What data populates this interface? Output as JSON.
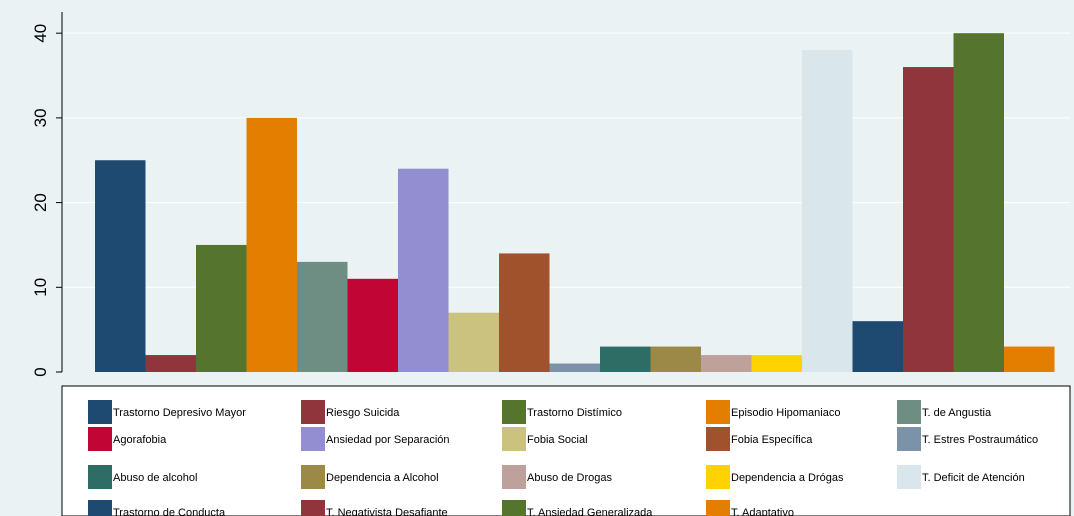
{
  "chart_data": {
    "type": "bar",
    "title": "",
    "xlabel": "",
    "ylabel": "",
    "ylim": [
      0,
      42.5
    ],
    "yticks": [
      0,
      10,
      20,
      30,
      40
    ],
    "ytick_labels": [
      "0",
      "10",
      "20",
      "30",
      "40"
    ],
    "grid": "horizontal",
    "legend_position": "bottom",
    "series": [
      {
        "name": "Trastorno Depresivo Mayor",
        "value": 25,
        "color": "#1e4a72"
      },
      {
        "name": "Riesgo Suicida",
        "value": 2,
        "color": "#90353b"
      },
      {
        "name": "Trastorno Distímico",
        "value": 15,
        "color": "#55752f"
      },
      {
        "name": "Episodio Hipomaniaco",
        "value": 30,
        "color": "#e37e00"
      },
      {
        "name": "T. de Angustia",
        "value": 13,
        "color": "#6e8e84"
      },
      {
        "name": "Agorafobia",
        "value": 11,
        "color": "#c10534"
      },
      {
        "name": "Ansiedad por Separación",
        "value": 24,
        "color": "#938dd2"
      },
      {
        "name": "Fobia Social",
        "value": 7,
        "color": "#cac27e"
      },
      {
        "name": "Fobia Específica",
        "value": 14,
        "color": "#a0522d"
      },
      {
        "name": "T. Estres Postraumático",
        "value": 1,
        "color": "#7b92a8"
      },
      {
        "name": "Abuso de alcohol",
        "value": 3,
        "color": "#2d6d66"
      },
      {
        "name": "Dependencia a Alcohol",
        "value": 3,
        "color": "#9c8847"
      },
      {
        "name": "Abuso de Drogas",
        "value": 2,
        "color": "#bfa19c"
      },
      {
        "name": "Dependencia a Drógas",
        "value": 2,
        "color": "#ffd200"
      },
      {
        "name": "T. Deficit de Atención",
        "value": 38,
        "color": "#d9e6eb"
      },
      {
        "name": "Trastorno de Conducta",
        "value": 6,
        "color": "#1e4a72"
      },
      {
        "name": "T. Negativista Desafiante",
        "value": 36,
        "color": "#90353b"
      },
      {
        "name": "T. Ansiedad Generalizada",
        "value": 40,
        "color": "#55752f"
      },
      {
        "name": "T. Adaptativo",
        "value": 3,
        "color": "#e37e00"
      }
    ]
  }
}
